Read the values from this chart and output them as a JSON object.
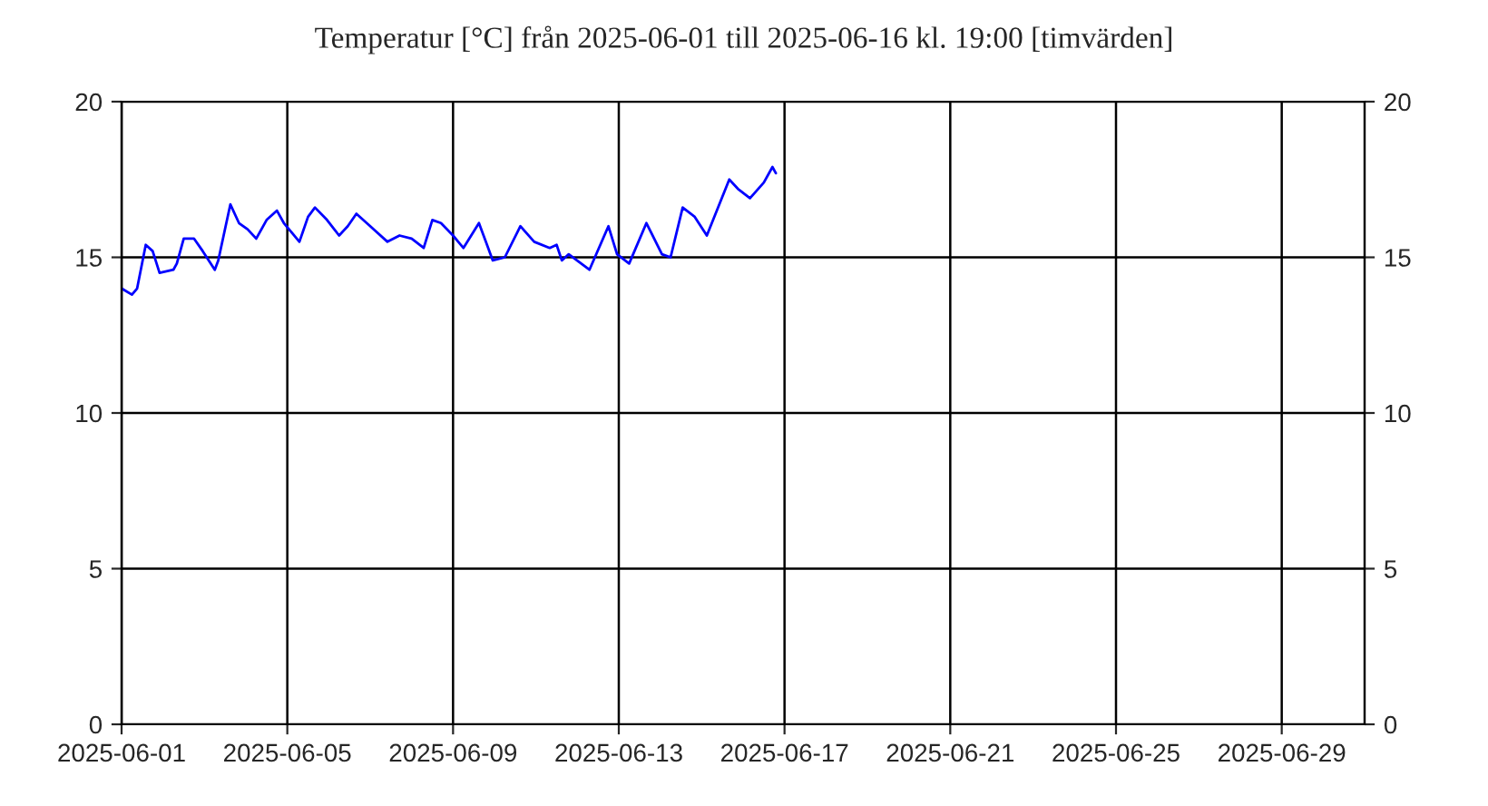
{
  "chart_data": {
    "type": "line",
    "title": "Temperatur [°C] från 2025-06-01 till 2025-06-16 kl. 19:00 [timvärden]",
    "x": [
      "2025-06-01T00:00",
      "2025-06-01T06:00",
      "2025-06-01T09:00",
      "2025-06-01T14:00",
      "2025-06-01T18:00",
      "2025-06-01T22:00",
      "2025-06-02T06:00",
      "2025-06-02T08:00",
      "2025-06-02T12:00",
      "2025-06-02T18:00",
      "2025-06-02T23:00",
      "2025-06-03T06:00",
      "2025-06-03T08:00",
      "2025-06-03T15:00",
      "2025-06-03T20:00",
      "2025-06-04T01:00",
      "2025-06-04T06:00",
      "2025-06-04T12:00",
      "2025-06-04T18:00",
      "2025-06-04T22:00",
      "2025-06-05T07:00",
      "2025-06-05T12:00",
      "2025-06-05T16:00",
      "2025-06-05T23:00",
      "2025-06-06T06:00",
      "2025-06-06T11:00",
      "2025-06-06T16:00",
      "2025-06-06T22:00",
      "2025-06-07T10:00",
      "2025-06-07T17:00",
      "2025-06-08T00:00",
      "2025-06-08T07:00",
      "2025-06-08T12:00",
      "2025-06-08T17:00",
      "2025-06-09T00:00",
      "2025-06-09T06:00",
      "2025-06-09T15:00",
      "2025-06-09T19:00",
      "2025-06-09T23:00",
      "2025-06-10T06:00",
      "2025-06-10T15:00",
      "2025-06-10T23:00",
      "2025-06-11T08:00",
      "2025-06-11T12:00",
      "2025-06-11T15:00",
      "2025-06-11T19:00",
      "2025-06-12T07:00",
      "2025-06-12T18:00",
      "2025-06-12T23:00",
      "2025-06-13T06:00",
      "2025-06-13T16:00",
      "2025-06-14T01:00",
      "2025-06-14T06:00",
      "2025-06-14T13:00",
      "2025-06-14T20:00",
      "2025-06-15T03:00",
      "2025-06-15T16:00",
      "2025-06-15T21:00",
      "2025-06-16T04:00",
      "2025-06-16T12:00",
      "2025-06-16T17:00",
      "2025-06-16T19:00"
    ],
    "series": [
      {
        "color": "#0000ff",
        "values": [
          14.0,
          13.8,
          14.0,
          15.4,
          15.2,
          14.5,
          14.6,
          14.8,
          15.6,
          15.6,
          15.2,
          14.6,
          14.9,
          16.7,
          16.1,
          15.9,
          15.6,
          16.2,
          16.5,
          16.1,
          15.5,
          16.3,
          16.6,
          16.2,
          15.7,
          16.0,
          16.4,
          16.1,
          15.5,
          15.7,
          15.6,
          15.3,
          16.2,
          16.1,
          15.7,
          15.3,
          16.1,
          15.5,
          14.9,
          15.0,
          16.0,
          15.5,
          15.3,
          15.4,
          14.9,
          15.1,
          14.6,
          16.0,
          15.1,
          14.8,
          16.1,
          15.1,
          15.0,
          16.6,
          16.3,
          15.7,
          17.5,
          17.2,
          16.9,
          17.4,
          17.9,
          17.7
        ]
      }
    ],
    "xlim": [
      "2025-06-01",
      "2025-07-01"
    ],
    "xticks": [
      "2025-06-01",
      "2025-06-05",
      "2025-06-09",
      "2025-06-13",
      "2025-06-17",
      "2025-06-21",
      "2025-06-25",
      "2025-06-29"
    ],
    "ylim": [
      0,
      20
    ],
    "yticks": [
      0,
      5,
      10,
      15,
      20
    ],
    "y2lim": [
      0,
      20
    ],
    "y2ticks": [
      0,
      5,
      10,
      15,
      20
    ],
    "grid": true,
    "legend": false,
    "marker": "none",
    "line_style": "solid"
  }
}
